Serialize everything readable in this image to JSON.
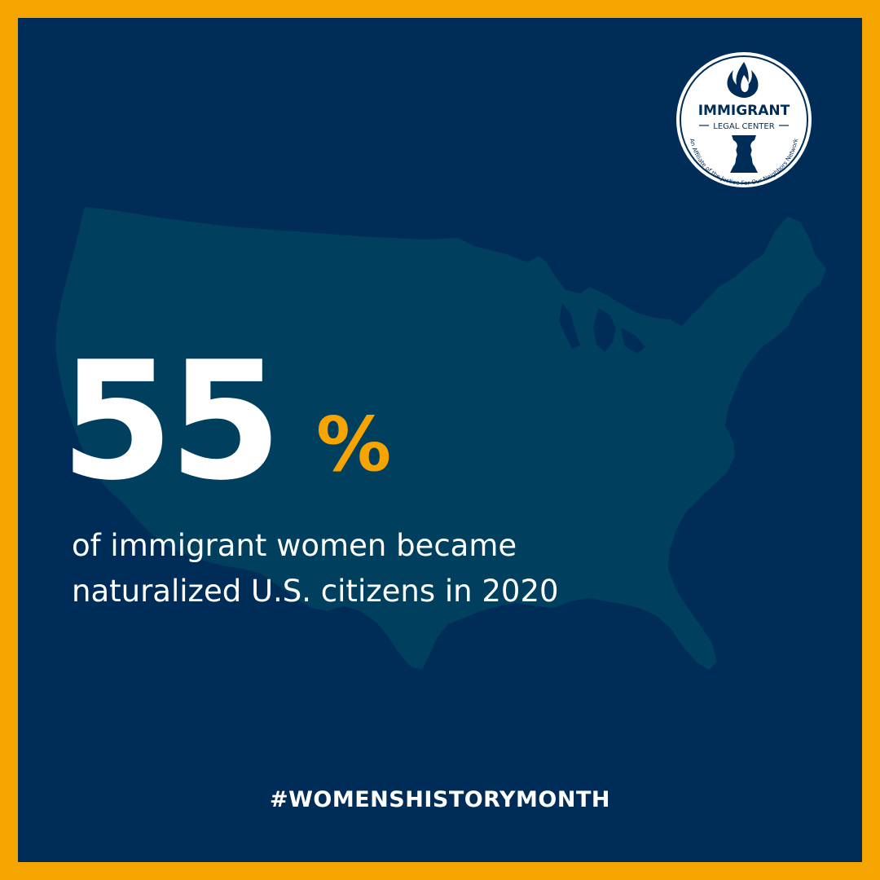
{
  "colors": {
    "border": "#f6a500",
    "background": "#002d57",
    "map": "#003f5e",
    "accent": "#f6a500",
    "text": "#ffffff"
  },
  "stat": {
    "number": "55",
    "unit": "%"
  },
  "caption": {
    "line1": "of immigrant women became",
    "line2": "naturalized U.S. citizens in 2020"
  },
  "hashtag": "#WOMENSHISTORYMONTH",
  "logo": {
    "name_line1": "IMMIGRANT",
    "name_line2": "LEGAL CENTER",
    "affiliate_text": "An Affiliate of the Justice For Our Neighbors Network",
    "icon": "flame-vase-faces-icon"
  },
  "background_graphic": {
    "icon": "us-map-silhouette-icon"
  }
}
